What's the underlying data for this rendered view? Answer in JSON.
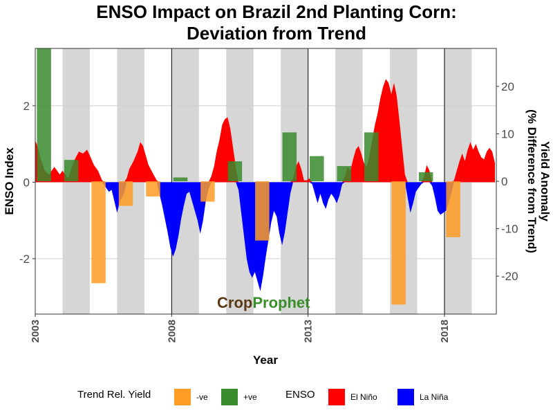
{
  "chart_data": {
    "type": "bar+area",
    "title": "ENSO Impact on Brazil 2nd Planting Corn:",
    "subtitle": "Deviation from Trend",
    "xlabel": "Year",
    "ylabel_left": "ENSO Index",
    "ylabel_right_line1": "Yield Anomaly",
    "ylabel_right_line2": "(% Difference from Trend)",
    "x_ticks": [
      2003,
      2008,
      2013,
      2018
    ],
    "y_left_ticks": [
      -2,
      0,
      2
    ],
    "y_right_ticks": [
      20,
      10,
      0,
      -10,
      -20
    ],
    "xlim": [
      2003,
      2019.9
    ],
    "ylim_left": [
      -3.45,
      3.5
    ],
    "ylim_right": [
      -28,
      28
    ],
    "shaded_years": [
      2004,
      2006,
      2008,
      2010,
      2012,
      2014,
      2016,
      2018
    ],
    "yield_bars": [
      {
        "year": 2003,
        "value": 28
      },
      {
        "year": 2004,
        "value": 4.5
      },
      {
        "year": 2005,
        "value": -21.5
      },
      {
        "year": 2006,
        "value": -5.2
      },
      {
        "year": 2007,
        "value": -3.2
      },
      {
        "year": 2008,
        "value": 0.8
      },
      {
        "year": 2009,
        "value": -4.3
      },
      {
        "year": 2010,
        "value": 4.2
      },
      {
        "year": 2011,
        "value": -12.5
      },
      {
        "year": 2012,
        "value": 10.3
      },
      {
        "year": 2013,
        "value": 5.3
      },
      {
        "year": 2014,
        "value": 3.2
      },
      {
        "year": 2015,
        "value": 10.3
      },
      {
        "year": 2016,
        "value": -26
      },
      {
        "year": 2017,
        "value": 1.9
      },
      {
        "year": 2018,
        "value": -11.8
      }
    ],
    "enso_index": [
      [
        2003.0,
        1.1
      ],
      [
        2003.1,
        0.9
      ],
      [
        2003.2,
        0.6
      ],
      [
        2003.35,
        0.3
      ],
      [
        2003.5,
        0.2
      ],
      [
        2003.6,
        0.3
      ],
      [
        2003.7,
        0.4
      ],
      [
        2003.8,
        0.3
      ],
      [
        2003.9,
        0.2
      ],
      [
        2004.0,
        0.3
      ],
      [
        2004.1,
        0.2
      ],
      [
        2004.2,
        0.1
      ],
      [
        2004.3,
        0.3
      ],
      [
        2004.45,
        0.6
      ],
      [
        2004.6,
        0.8
      ],
      [
        2004.75,
        0.75
      ],
      [
        2004.9,
        0.85
      ],
      [
        2005.0,
        0.7
      ],
      [
        2005.15,
        0.45
      ],
      [
        2005.3,
        0.3
      ],
      [
        2005.45,
        0.05
      ],
      [
        2005.55,
        -0.1
      ],
      [
        2005.7,
        -0.25
      ],
      [
        2005.8,
        -0.2
      ],
      [
        2005.9,
        -0.5
      ],
      [
        2006.0,
        -0.8
      ],
      [
        2006.1,
        -0.5
      ],
      [
        2006.25,
        -0.3
      ],
      [
        2006.35,
        0.1
      ],
      [
        2006.45,
        0.35
      ],
      [
        2006.6,
        0.55
      ],
      [
        2006.75,
        0.8
      ],
      [
        2006.85,
        1.05
      ],
      [
        2006.95,
        0.95
      ],
      [
        2007.05,
        0.7
      ],
      [
        2007.15,
        0.45
      ],
      [
        2007.3,
        0.25
      ],
      [
        2007.45,
        0.05
      ],
      [
        2007.55,
        -0.3
      ],
      [
        2007.65,
        -0.6
      ],
      [
        2007.75,
        -0.95
      ],
      [
        2007.85,
        -1.3
      ],
      [
        2007.95,
        -1.7
      ],
      [
        2008.05,
        -1.95
      ],
      [
        2008.15,
        -1.75
      ],
      [
        2008.25,
        -1.4
      ],
      [
        2008.35,
        -0.95
      ],
      [
        2008.45,
        -0.6
      ],
      [
        2008.55,
        -0.3
      ],
      [
        2008.65,
        -0.25
      ],
      [
        2008.75,
        -0.5
      ],
      [
        2008.85,
        -0.75
      ],
      [
        2008.95,
        -1.0
      ],
      [
        2009.05,
        -1.35
      ],
      [
        2009.15,
        -1.0
      ],
      [
        2009.25,
        -0.5
      ],
      [
        2009.35,
        -0.2
      ],
      [
        2009.45,
        0.15
      ],
      [
        2009.55,
        0.4
      ],
      [
        2009.65,
        0.8
      ],
      [
        2009.75,
        1.1
      ],
      [
        2009.85,
        1.5
      ],
      [
        2009.95,
        1.65
      ],
      [
        2010.05,
        1.7
      ],
      [
        2010.15,
        1.4
      ],
      [
        2010.25,
        0.9
      ],
      [
        2010.35,
        0.4
      ],
      [
        2010.45,
        -0.2
      ],
      [
        2010.55,
        -0.8
      ],
      [
        2010.65,
        -1.4
      ],
      [
        2010.75,
        -2.0
      ],
      [
        2010.85,
        -2.35
      ],
      [
        2010.95,
        -2.5
      ],
      [
        2011.05,
        -2.35
      ],
      [
        2011.15,
        -2.6
      ],
      [
        2011.25,
        -2.85
      ],
      [
        2011.35,
        -2.45
      ],
      [
        2011.45,
        -1.95
      ],
      [
        2011.55,
        -1.5
      ],
      [
        2011.65,
        -1.05
      ],
      [
        2011.75,
        -0.75
      ],
      [
        2011.85,
        -0.9
      ],
      [
        2011.95,
        -1.35
      ],
      [
        2012.05,
        -1.65
      ],
      [
        2012.15,
        -1.3
      ],
      [
        2012.25,
        -0.8
      ],
      [
        2012.35,
        -0.3
      ],
      [
        2012.45,
        0.1
      ],
      [
        2012.55,
        0.4
      ],
      [
        2012.65,
        0.55
      ],
      [
        2012.75,
        0.35
      ],
      [
        2012.85,
        0.05
      ],
      [
        2012.95,
        0.05
      ],
      [
        2013.05,
        0.1
      ],
      [
        2013.15,
        -0.05
      ],
      [
        2013.25,
        -0.3
      ],
      [
        2013.35,
        -0.55
      ],
      [
        2013.45,
        -0.3
      ],
      [
        2013.55,
        -0.55
      ],
      [
        2013.65,
        -0.7
      ],
      [
        2013.75,
        -0.45
      ],
      [
        2013.85,
        -0.3
      ],
      [
        2013.95,
        -0.4
      ],
      [
        2014.05,
        -0.55
      ],
      [
        2014.15,
        -0.35
      ],
      [
        2014.25,
        -0.05
      ],
      [
        2014.35,
        0.15
      ],
      [
        2014.45,
        0.4
      ],
      [
        2014.55,
        0.3
      ],
      [
        2014.65,
        0.6
      ],
      [
        2014.75,
        0.85
      ],
      [
        2014.85,
        0.95
      ],
      [
        2014.95,
        0.75
      ],
      [
        2015.05,
        0.5
      ],
      [
        2015.15,
        0.4
      ],
      [
        2015.25,
        0.7
      ],
      [
        2015.35,
        1.1
      ],
      [
        2015.45,
        1.5
      ],
      [
        2015.55,
        1.8
      ],
      [
        2015.65,
        2.2
      ],
      [
        2015.75,
        2.5
      ],
      [
        2015.85,
        2.7
      ],
      [
        2015.95,
        2.6
      ],
      [
        2016.05,
        2.3
      ],
      [
        2016.15,
        2.6
      ],
      [
        2016.25,
        2.25
      ],
      [
        2016.35,
        1.6
      ],
      [
        2016.45,
        0.9
      ],
      [
        2016.55,
        0.2
      ],
      [
        2016.65,
        -0.4
      ],
      [
        2016.75,
        -0.8
      ],
      [
        2016.85,
        -0.55
      ],
      [
        2016.95,
        -0.25
      ],
      [
        2017.05,
        -0.15
      ],
      [
        2017.15,
        -0.05
      ],
      [
        2017.25,
        0.15
      ],
      [
        2017.35,
        0.45
      ],
      [
        2017.45,
        0.3
      ],
      [
        2017.55,
        -0.1
      ],
      [
        2017.65,
        -0.4
      ],
      [
        2017.75,
        -0.75
      ],
      [
        2017.85,
        -0.85
      ],
      [
        2017.95,
        -0.8
      ],
      [
        2018.05,
        -0.75
      ],
      [
        2018.15,
        -0.55
      ],
      [
        2018.25,
        -0.3
      ],
      [
        2018.35,
        0.05
      ],
      [
        2018.45,
        0.3
      ],
      [
        2018.55,
        0.55
      ],
      [
        2018.65,
        0.75
      ],
      [
        2018.75,
        0.55
      ],
      [
        2018.85,
        0.85
      ],
      [
        2018.95,
        1.05
      ],
      [
        2019.05,
        0.85
      ],
      [
        2019.15,
        1.0
      ],
      [
        2019.25,
        0.8
      ],
      [
        2019.35,
        0.65
      ],
      [
        2019.45,
        0.6
      ],
      [
        2019.55,
        0.8
      ],
      [
        2019.65,
        0.9
      ],
      [
        2019.75,
        0.8
      ],
      [
        2019.85,
        0.5
      ]
    ],
    "legend": {
      "position": "bottom",
      "yield_title": "Trend Rel. Yield",
      "yield_neg": "-ve",
      "yield_pos": "+ve",
      "enso_title": "ENSO",
      "el_nino": "El Niño",
      "la_nina": "La Niña"
    },
    "colors": {
      "neg": "#ff9c24",
      "pos": "#3a8a2e",
      "el_nino": "#ff0000",
      "la_nina": "#0000ff",
      "shade": "#d6d6d6",
      "grid": "#cfcfcf",
      "gridline": "#bdbdbd"
    }
  },
  "watermark": {
    "part1": "Crop",
    "part2": "Prophet",
    "color1": "#5a3a16",
    "color2": "#3a8f2b"
  }
}
